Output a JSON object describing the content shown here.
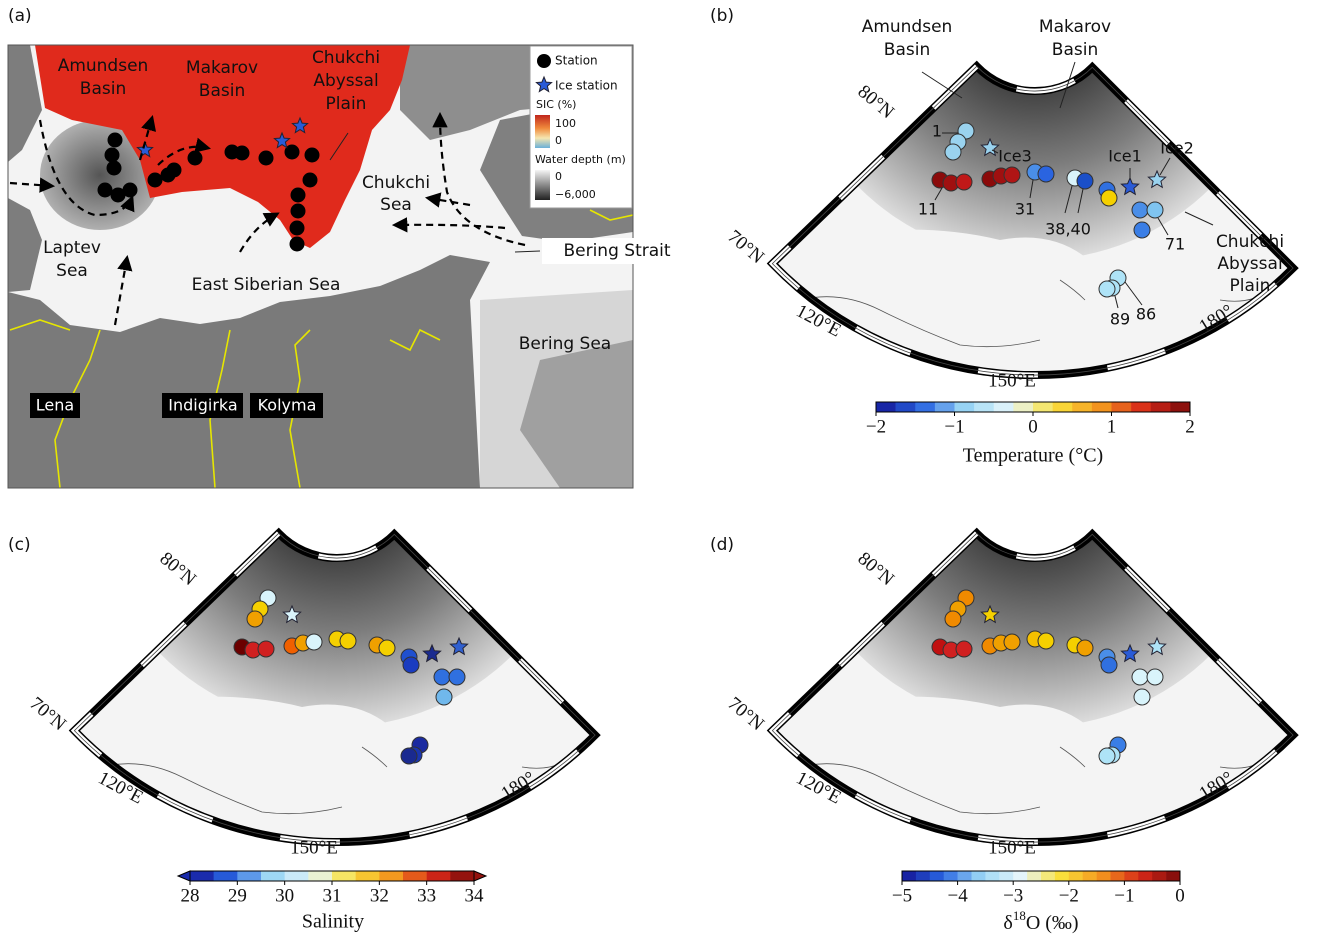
{
  "panel_a": {
    "label": "(a)",
    "places": [
      {
        "lines": [
          "Amundsen",
          "Basin"
        ]
      },
      {
        "lines": [
          "Makarov",
          "Basin"
        ]
      },
      {
        "lines": [
          "Chukchi",
          "Abyssal",
          "Plain"
        ]
      },
      {
        "lines": [
          "Chukchi",
          "Sea"
        ]
      },
      {
        "lines": [
          "Laptev",
          "Sea"
        ]
      },
      {
        "lines": [
          "East Siberian Sea"
        ]
      },
      {
        "lines": [
          "Bering Strait"
        ]
      },
      {
        "lines": [
          "Bering Sea"
        ]
      }
    ],
    "rivers": [
      "Lena",
      "Indigirka",
      "Kolyma"
    ],
    "legend": {
      "station": "Station",
      "ice_station": "Ice station",
      "sic_title": "SIC (%)",
      "sic_ticks": [
        "100",
        "0"
      ],
      "depth_title": "Water depth (m)",
      "depth_ticks": [
        "0",
        "−6,000"
      ]
    }
  },
  "panel_b": {
    "label": "(b)",
    "lat_labels": [
      "80°N",
      "70°N"
    ],
    "lon_labels": [
      "120°E",
      "150°E",
      "180°"
    ],
    "places": [
      {
        "lines": [
          "Amundsen",
          "Basin"
        ]
      },
      {
        "lines": [
          "Makarov",
          "Basin"
        ]
      },
      {
        "lines": [
          "Chukchi",
          "Abyssal",
          "Plain"
        ]
      }
    ],
    "station_labels": [
      "1",
      "Ice3",
      "11",
      "31",
      "38,40",
      "Ice1",
      "Ice2",
      "71",
      "89",
      "86"
    ],
    "colorbar": {
      "ticks": [
        "−2",
        "−1",
        "0",
        "1",
        "2"
      ],
      "title": "Temperature (°C)"
    }
  },
  "panel_c": {
    "label": "(c)",
    "lat_labels": [
      "80°N",
      "70°N"
    ],
    "lon_labels": [
      "120°E",
      "150°E",
      "180°"
    ],
    "colorbar": {
      "ticks": [
        "28",
        "29",
        "30",
        "31",
        "32",
        "33",
        "34"
      ],
      "title": "Salinity"
    }
  },
  "panel_d": {
    "label": "(d)",
    "lat_labels": [
      "80°N",
      "70°N"
    ],
    "lon_labels": [
      "120°E",
      "150°E",
      "180°"
    ],
    "colorbar": {
      "ticks": [
        "−5",
        "−4",
        "−3",
        "−2",
        "−1",
        "0"
      ],
      "title_parts": [
        "δ",
        "18",
        "O (‰)"
      ]
    }
  }
}
